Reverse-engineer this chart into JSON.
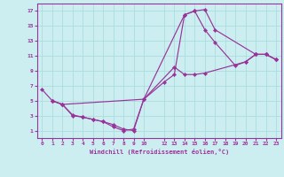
{
  "xlabel": "Windchill (Refroidissement éolien,°C)",
  "bg_color": "#cceef0",
  "grid_color": "#aadddd",
  "line_color": "#993399",
  "xlim": [
    -0.5,
    23.5
  ],
  "ylim": [
    0,
    18
  ],
  "xticks": [
    0,
    1,
    2,
    3,
    4,
    5,
    6,
    7,
    8,
    9,
    10,
    12,
    13,
    14,
    15,
    16,
    17,
    18,
    19,
    20,
    21,
    22,
    23
  ],
  "xtick_labels": [
    "0",
    "1",
    "2",
    "3",
    "4",
    "5",
    "6",
    "7",
    "8",
    "9",
    "10",
    "12",
    "13",
    "14",
    "15",
    "16",
    "17",
    "18",
    "19",
    "20",
    "21",
    "22",
    "23"
  ],
  "yticks": [
    1,
    3,
    5,
    7,
    9,
    11,
    13,
    15,
    17
  ],
  "series": [
    {
      "x": [
        0,
        1,
        2,
        3,
        4,
        5,
        6,
        7,
        8,
        9,
        10,
        14,
        15,
        16,
        17,
        21,
        22,
        23
      ],
      "y": [
        6.5,
        5.0,
        4.5,
        3.1,
        2.8,
        2.5,
        2.2,
        1.5,
        1.0,
        1.2,
        5.2,
        16.5,
        17.0,
        17.2,
        14.5,
        11.2,
        11.2,
        10.5
      ]
    },
    {
      "x": [
        1,
        2,
        3,
        4,
        5,
        6,
        7,
        8,
        9,
        10,
        13,
        14,
        15,
        16,
        20,
        21,
        22,
        23
      ],
      "y": [
        5.0,
        4.5,
        3.0,
        2.8,
        2.5,
        2.2,
        1.8,
        1.2,
        1.0,
        5.2,
        9.5,
        8.5,
        8.5,
        8.7,
        10.2,
        11.2,
        11.2,
        10.5
      ]
    },
    {
      "x": [
        1,
        2,
        10,
        12,
        13,
        14,
        15,
        16,
        17,
        19,
        20,
        21,
        22,
        23
      ],
      "y": [
        5.0,
        4.5,
        5.2,
        7.5,
        8.5,
        16.5,
        17.0,
        14.5,
        12.8,
        9.7,
        10.2,
        11.2,
        11.2,
        10.5
      ]
    }
  ]
}
